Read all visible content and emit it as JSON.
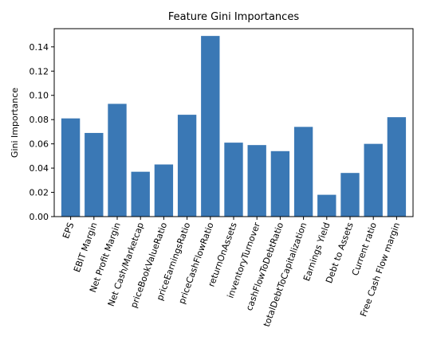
{
  "chart_data": {
    "type": "bar",
    "title": "Feature Gini Importances",
    "xlabel": "",
    "ylabel": "Gini Importance",
    "ylim": [
      0,
      0.155
    ],
    "yticks": [
      "0.00",
      "0.02",
      "0.04",
      "0.06",
      "0.08",
      "0.10",
      "0.12",
      "0.14"
    ],
    "grid": false,
    "legend": "none",
    "bar_color": "#3a78b5",
    "categories": [
      "EPS",
      "EBIT Margin",
      "Net Profit Margin",
      "Net Cash/Marketcap",
      "priceBookValueRatio",
      "priceEarningsRatio",
      "priceCashFlowRatio",
      "returnOnAssets",
      "inventoryTurnover",
      "cashFlowToDebtRatio",
      "totalDebtToCapitalization",
      "Earnings Yield",
      "Debt to Assets",
      "Current ratio",
      "Free Cash Flow margin"
    ],
    "values": [
      0.081,
      0.069,
      0.093,
      0.037,
      0.043,
      0.084,
      0.149,
      0.061,
      0.059,
      0.054,
      0.074,
      0.018,
      0.036,
      0.06,
      0.082
    ]
  }
}
